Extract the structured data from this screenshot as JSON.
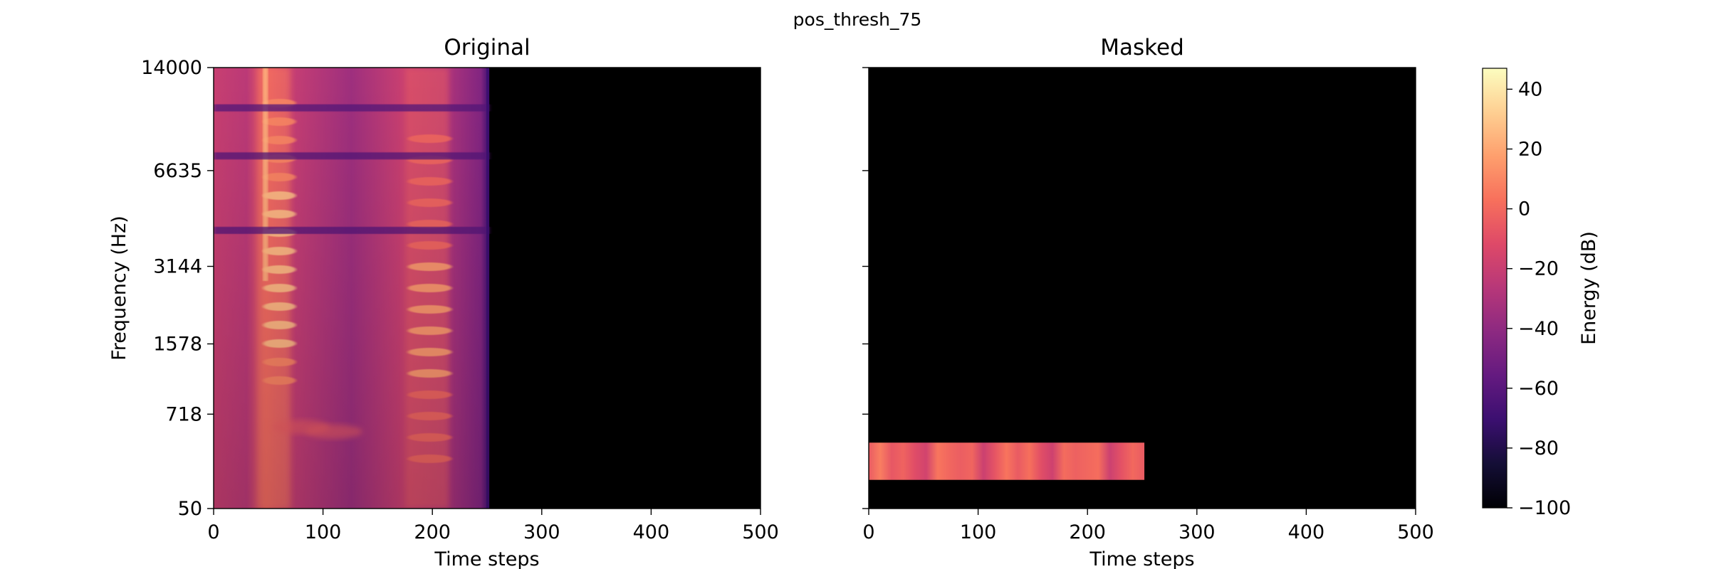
{
  "figure_title": "pos_thresh_75",
  "colors": {
    "background": "#ffffff",
    "masked_fill": "#000000",
    "axis": "#000000",
    "colormap": [
      "#000004",
      "#140e36",
      "#3b0f70",
      "#641a80",
      "#8c2981",
      "#b73779",
      "#de4968",
      "#f7705c",
      "#fe9f6d",
      "#fecf92",
      "#fcfdbf"
    ]
  },
  "chart_data": [
    {
      "type": "heatmap",
      "title": "Original",
      "xlabel": "Time steps",
      "ylabel": "Frequency (Hz)",
      "xlim": [
        0,
        500
      ],
      "xticks": [
        0,
        100,
        200,
        300,
        400,
        500
      ],
      "yscale": "mel",
      "yticks": [
        50,
        718,
        1578,
        3144,
        6635,
        14000
      ],
      "ylim": [
        50,
        14000
      ],
      "filled_time_range": [
        0,
        252
      ],
      "remaining_time_range_value_db": -100,
      "bright_regions": [
        {
          "time_range": [
            40,
            70
          ],
          "description_energy_db": 30
        },
        {
          "time_range": [
            175,
            215
          ],
          "description_energy_db": 20
        }
      ],
      "dark_bands_hz": [
        4200,
        7400,
        10500
      ]
    },
    {
      "type": "heatmap",
      "title": "Masked",
      "xlabel": "Time steps",
      "ylabel": "",
      "xlim": [
        0,
        500
      ],
      "xticks": [
        0,
        100,
        200,
        300,
        400,
        500
      ],
      "yscale": "mel",
      "yticks": [
        50,
        718,
        1578,
        3144,
        6635,
        14000
      ],
      "ylim": [
        50,
        14000
      ],
      "background_value_db": -100,
      "visible_band": {
        "time_range": [
          0,
          252
        ],
        "frequency_range_hz": [
          210,
          470
        ],
        "energy_db_range": [
          -20,
          10
        ]
      }
    },
    {
      "type": "colorbar",
      "label": "Energy (dB)",
      "range": [
        -100,
        47
      ],
      "ticks": [
        -100,
        -80,
        -60,
        -40,
        -20,
        0,
        20,
        40
      ],
      "tick_labels": [
        "−100",
        "−80",
        "−60",
        "−40",
        "−20",
        "0",
        "20",
        "40"
      ]
    }
  ]
}
